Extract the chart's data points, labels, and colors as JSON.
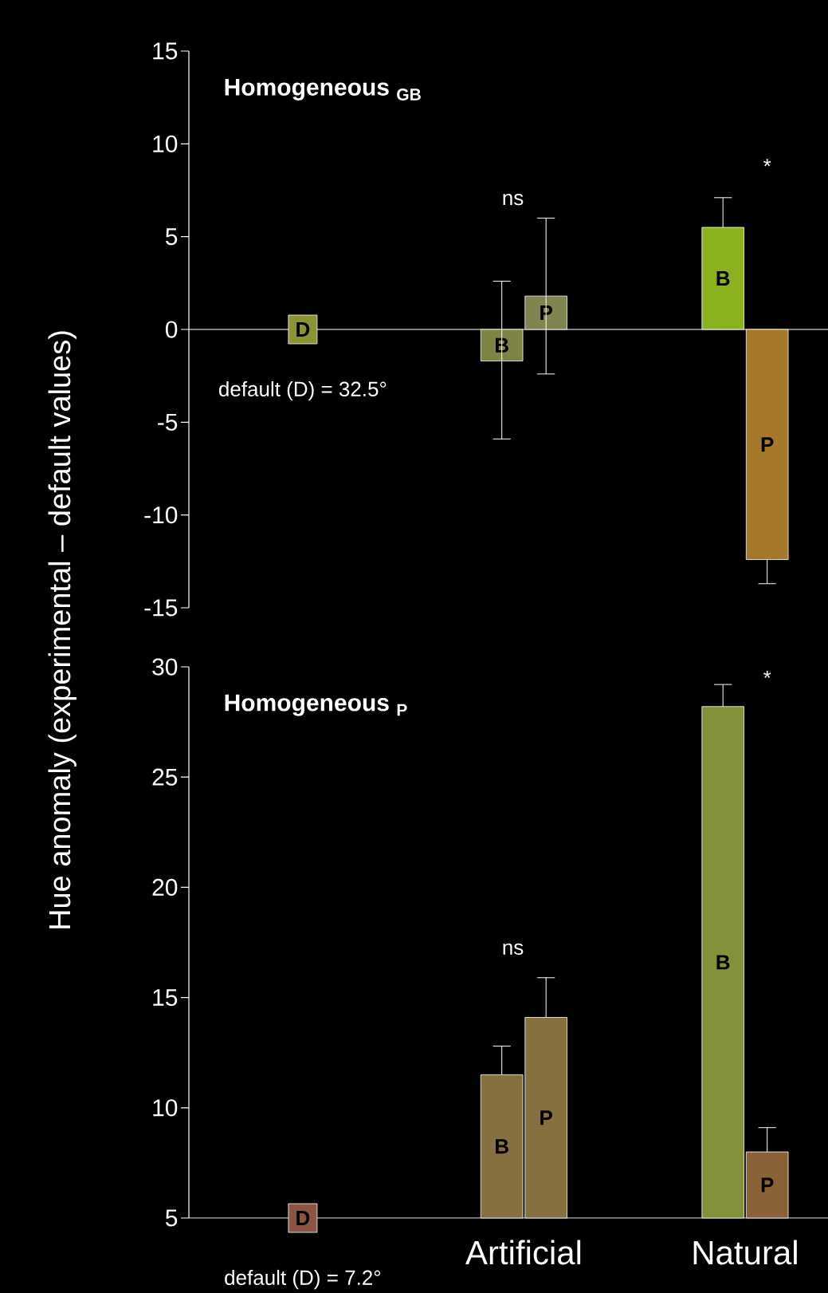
{
  "chart_data": [
    {
      "type": "bar",
      "title": "Homogeneous $_{GB}$",
      "ylabel": "Hue anomaly (experimental – default values)",
      "ylim": [
        -15,
        15
      ],
      "yticks": [
        -15,
        -10,
        -5,
        0,
        5,
        10,
        15
      ],
      "series": [
        {
          "name": "D",
          "type": "scatter",
          "marker": "square",
          "colors": [
            "#8b9430",
            null,
            null
          ],
          "values": [
            0,
            null,
            null
          ]
        },
        {
          "name": "B",
          "colors": [
            null,
            "#7f8444",
            "#8ab21e"
          ],
          "values": [
            null,
            -1.7,
            5.5
          ],
          "errors": [
            null,
            [
              -5.9,
              2.6
            ],
            [
              5.5,
              7.1
            ]
          ]
        },
        {
          "name": "P",
          "colors": [
            null,
            "#7f8450",
            "#a6782a"
          ],
          "values": [
            null,
            1.8,
            -12.4
          ],
          "errors": [
            null,
            [
              -2.4,
              6.0
            ],
            [
              -13.7,
              -12.4
            ]
          ]
        }
      ],
      "annotations": [
        "ns",
        "*",
        "default (D) = 32.5°"
      ]
    },
    {
      "type": "bar",
      "title": "Homogeneous $_{P}$",
      "categories": [
        null,
        "Artificial",
        "Natural"
      ],
      "ylim": [
        5,
        30
      ],
      "yticks": [
        5,
        10,
        15,
        20,
        25,
        30
      ],
      "series": [
        {
          "name": "D",
          "type": "scatter",
          "marker": "square",
          "colors": [
            "#8b5545",
            null,
            null
          ],
          "values": [
            5,
            null,
            null
          ]
        },
        {
          "name": "B",
          "colors": [
            null,
            "#86703f",
            "#84903a"
          ],
          "values": [
            null,
            11.5,
            28.2
          ],
          "errors": [
            null,
            [
              11.5,
              12.8
            ],
            [
              28.2,
              29.2
            ]
          ]
        },
        {
          "name": "P",
          "colors": [
            null,
            "#86703f",
            "#8b6238"
          ],
          "values": [
            null,
            14.1,
            8.0
          ],
          "errors": [
            null,
            [
              14.1,
              15.9
            ],
            [
              8.0,
              9.1
            ]
          ]
        }
      ],
      "annotations": [
        "ns",
        "*",
        "default (D) = 7.2°"
      ]
    }
  ]
}
